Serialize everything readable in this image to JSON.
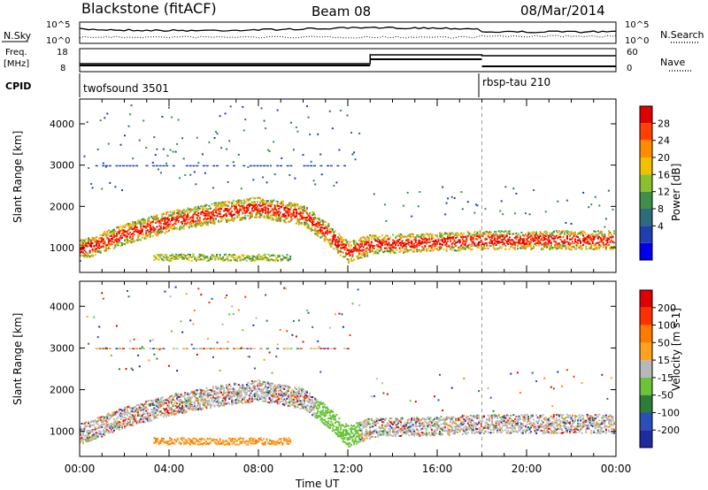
{
  "header": {
    "station": "Blackstone (fitACF)",
    "beam": "Beam 08",
    "date": "08/Mar/2014"
  },
  "noise_panel": {
    "left_label": "N.Sky",
    "right_label": "N.Search",
    "left_ticks": [
      "10^5",
      "10^0"
    ],
    "right_ticks": [
      "10^5",
      "10^0"
    ]
  },
  "freq_panel": {
    "left_label_1": "Freq.",
    "left_label_2": "[MHz]",
    "right_label": "Nave",
    "left_ticks": [
      "18",
      "8"
    ],
    "right_ticks": [
      "60",
      "0"
    ]
  },
  "cpid": {
    "label": "CPID",
    "segments": [
      "twofsound 3501",
      "rbsp-tau 210"
    ]
  },
  "time_axis": {
    "label": "Time UT",
    "ticks": [
      "00:00",
      "04:00",
      "08:00",
      "12:00",
      "16:00",
      "20:00",
      "00:00"
    ]
  },
  "power_scale": {
    "label": "Power [dB]",
    "ticks": [
      "28",
      "24",
      "20",
      "16",
      "12",
      "8",
      "4"
    ],
    "colors": [
      "#0000ee",
      "#1f3fb0",
      "#2f6c7a",
      "#3e8f4a",
      "#8cbf2e",
      "#f2c000",
      "#ff8c00",
      "#ff4000",
      "#e00000"
    ]
  },
  "velocity_scale": {
    "label": "Velocity [m s-1]",
    "ticks": [
      "200",
      "100",
      "50",
      "15",
      "-15",
      "-50",
      "-100",
      "-200"
    ],
    "colors": [
      "#1f2aa0",
      "#2a4fb8",
      "#2c7d3a",
      "#6ac33a",
      "#b8b8b8",
      "#ffa020",
      "#ff7a00",
      "#ff3000",
      "#e00000"
    ]
  },
  "chart_data": [
    {
      "type": "heatmap",
      "title": "Power",
      "xlabel": "Time UT",
      "ylabel": "Slant Range [km]",
      "xlim": [
        "00:00",
        "24:00"
      ],
      "ylim": [
        400,
        4600
      ],
      "yticks": [
        1000,
        2000,
        3000,
        4000
      ],
      "colorbar": {
        "label": "Power [dB]",
        "range": [
          0,
          30
        ]
      },
      "scatter_band": [
        {
          "t": 0,
          "r": 950
        },
        {
          "t": 2,
          "r": 1350
        },
        {
          "t": 4,
          "r": 1650
        },
        {
          "t": 6,
          "r": 1850
        },
        {
          "t": 8,
          "r": 2000
        },
        {
          "t": 10,
          "r": 1800
        },
        {
          "t": 11,
          "r": 1400
        },
        {
          "t": 12,
          "r": 900
        },
        {
          "t": 13,
          "r": 1100
        },
        {
          "t": 16,
          "r": 1150
        },
        {
          "t": 18,
          "r": 1200
        },
        {
          "t": 24,
          "r": 1200
        }
      ]
    },
    {
      "type": "heatmap",
      "title": "Velocity",
      "xlabel": "Time UT",
      "ylabel": "Slant Range [km]",
      "xlim": [
        "00:00",
        "24:00"
      ],
      "ylim": [
        400,
        4600
      ],
      "yticks": [
        1000,
        2000,
        3000,
        4000
      ],
      "colorbar": {
        "label": "Velocity [m s-1]",
        "range": [
          -200,
          200
        ]
      }
    }
  ]
}
